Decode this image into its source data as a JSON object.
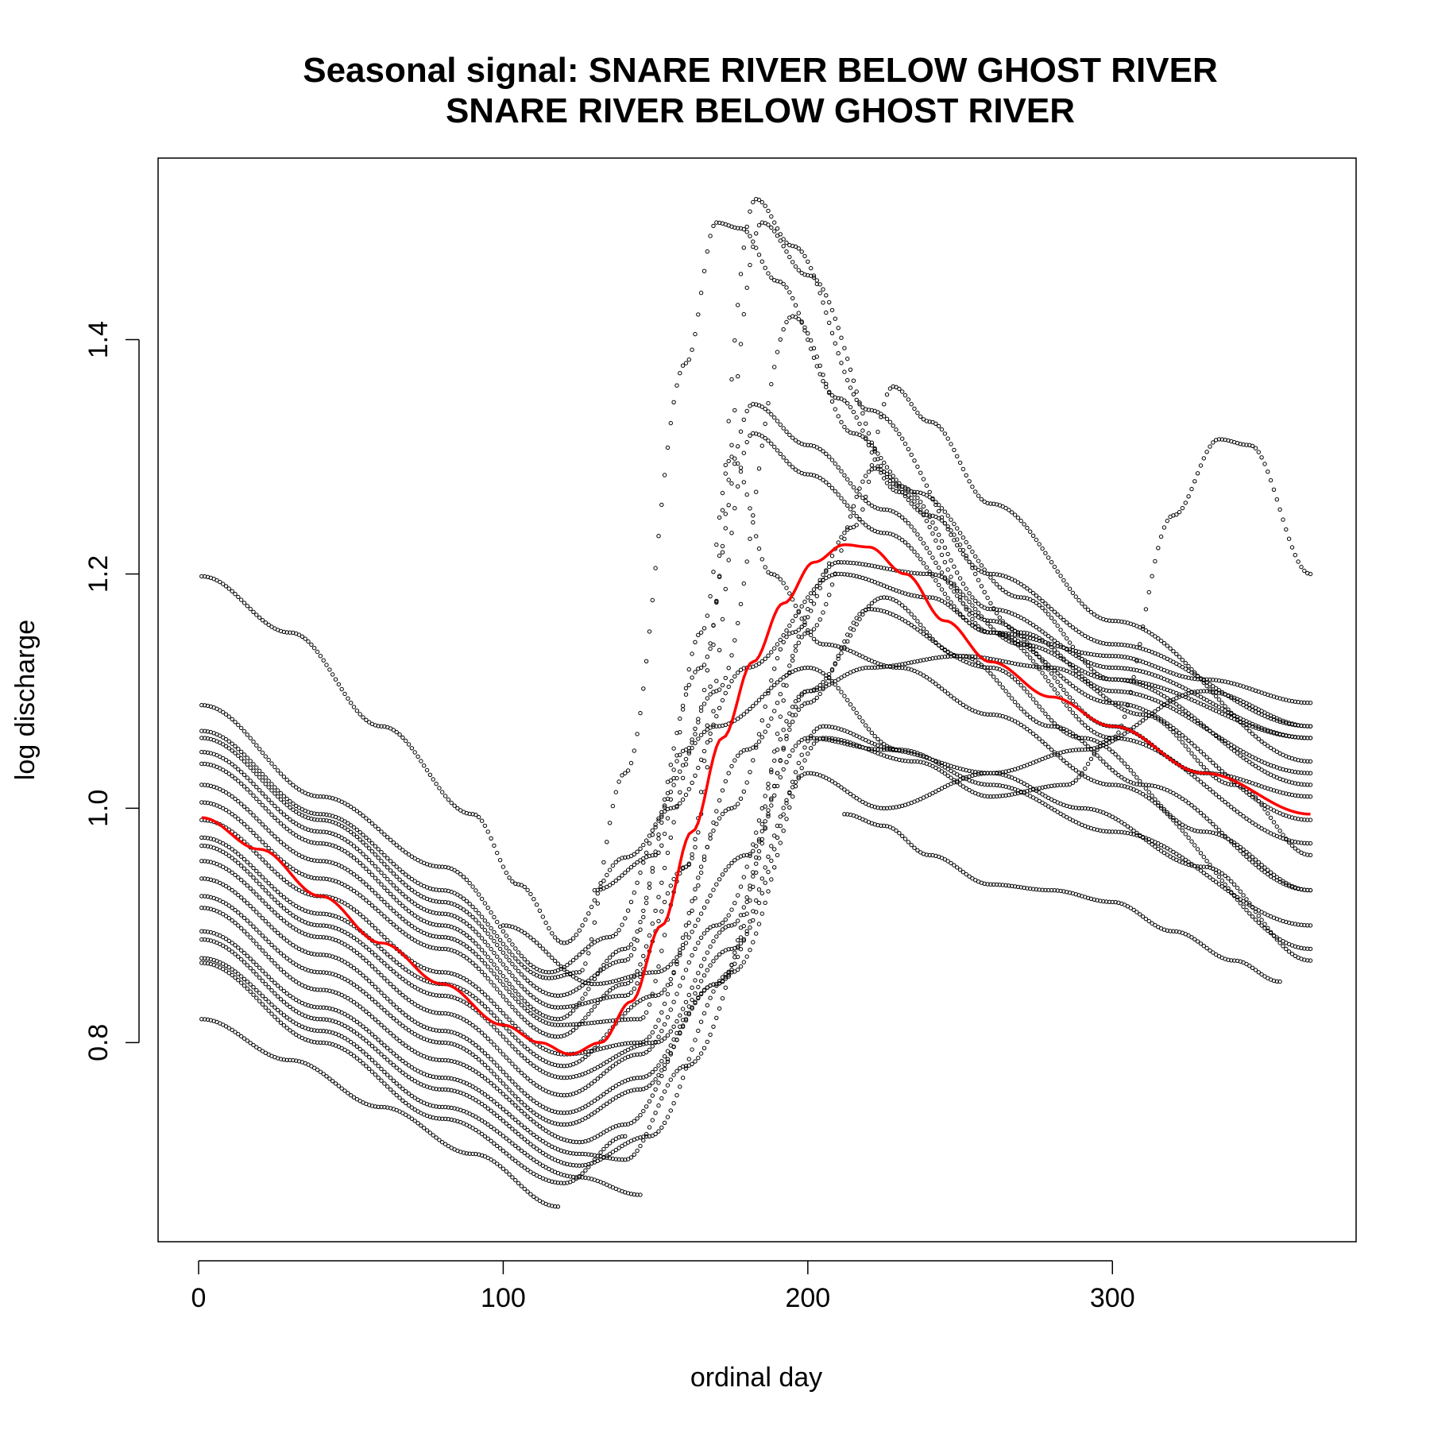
{
  "chart_data": {
    "type": "scatter",
    "title_lines": [
      "Seasonal signal: SNARE RIVER BELOW GHOST RIVER",
      "SNARE RIVER BELOW GHOST RIVER"
    ],
    "xlabel": "ordinal day",
    "ylabel": "log discharge",
    "xlim": [
      -13.3,
      380
    ],
    "ylim": [
      0.63,
      1.555
    ],
    "x_ticks": [
      0,
      100,
      200,
      300
    ],
    "y_ticks": [
      0.8,
      1.0,
      1.2,
      1.4
    ],
    "x_tick_labels": [
      "0",
      "100",
      "200",
      "300"
    ],
    "y_tick_labels": [
      "0.8",
      "1.0",
      "1.2",
      "1.4"
    ],
    "point_color": "#000000",
    "trend_color": "#ff0000",
    "grid": false,
    "legend": "none",
    "series": [
      {
        "points": [
          [
            1,
            1.198
          ],
          [
            30,
            1.15
          ],
          [
            60,
            1.07
          ],
          [
            90,
            0.995
          ],
          [
            105,
            0.935
          ],
          [
            120,
            0.885
          ],
          [
            140,
            0.958
          ],
          [
            170,
            1.07
          ],
          [
            200,
            1.12
          ],
          [
            230,
            1.05
          ]
        ]
      },
      {
        "points": [
          [
            1,
            1.088
          ],
          [
            40,
            1.01
          ],
          [
            80,
            0.95
          ],
          [
            115,
            0.86
          ],
          [
            135,
            0.89
          ],
          [
            155,
            1.0
          ],
          [
            180,
            1.12
          ],
          [
            210,
            1.2
          ],
          [
            240,
            1.18
          ],
          [
            260,
            1.15
          ],
          [
            300,
            1.13
          ],
          [
            330,
            1.11
          ],
          [
            365,
            1.09
          ]
        ]
      },
      {
        "points": [
          [
            1,
            1.066
          ],
          [
            40,
            0.995
          ],
          [
            80,
            0.93
          ],
          [
            115,
            0.855
          ],
          [
            125,
            0.86
          ],
          [
            140,
            1.03
          ],
          [
            160,
            1.38
          ],
          [
            170,
            1.5
          ],
          [
            178,
            1.495
          ],
          [
            190,
            1.45
          ],
          [
            210,
            1.35
          ],
          [
            230,
            1.27
          ],
          [
            260,
            1.15
          ],
          [
            300,
            1.09
          ],
          [
            365,
            0.99
          ]
        ]
      },
      {
        "points": [
          [
            1,
            1.06
          ],
          [
            40,
            0.99
          ],
          [
            80,
            0.92
          ],
          [
            118,
            0.84
          ],
          [
            140,
            0.87
          ],
          [
            160,
            1.05
          ],
          [
            182,
            1.345
          ],
          [
            200,
            1.31
          ],
          [
            225,
            1.255
          ],
          [
            260,
            1.16
          ],
          [
            300,
            1.07
          ],
          [
            330,
            1.03
          ],
          [
            365,
            1.01
          ]
        ]
      },
      {
        "points": [
          [
            1,
            1.048
          ],
          [
            40,
            0.98
          ],
          [
            80,
            0.91
          ],
          [
            118,
            0.83
          ],
          [
            140,
            0.84
          ],
          [
            160,
            0.95
          ],
          [
            182,
            1.32
          ],
          [
            200,
            1.285
          ],
          [
            225,
            1.235
          ],
          [
            260,
            1.15
          ],
          [
            300,
            1.06
          ],
          [
            365,
            0.97
          ]
        ]
      },
      {
        "points": [
          [
            1,
            1.038
          ],
          [
            40,
            0.97
          ],
          [
            80,
            0.9
          ],
          [
            118,
            0.82
          ],
          [
            140,
            0.88
          ],
          [
            165,
            1.12
          ],
          [
            185,
            1.5
          ],
          [
            200,
            1.455
          ],
          [
            230,
            1.275
          ],
          [
            260,
            1.17
          ],
          [
            300,
            1.12
          ],
          [
            365,
            1.06
          ]
        ]
      },
      {
        "points": [
          [
            1,
            1.02
          ],
          [
            40,
            0.955
          ],
          [
            80,
            0.89
          ],
          [
            118,
            0.815
          ],
          [
            145,
            0.82
          ],
          [
            160,
            0.95
          ],
          [
            183,
            1.52
          ],
          [
            195,
            1.48
          ],
          [
            220,
            1.34
          ],
          [
            260,
            1.2
          ],
          [
            300,
            1.14
          ],
          [
            365,
            1.07
          ]
        ]
      },
      {
        "points": [
          [
            1,
            1.005
          ],
          [
            40,
            0.94
          ],
          [
            80,
            0.88
          ],
          [
            118,
            0.805
          ],
          [
            140,
            0.85
          ],
          [
            170,
            1.1
          ],
          [
            195,
            1.42
          ],
          [
            215,
            1.32
          ],
          [
            235,
            1.27
          ],
          [
            270,
            1.18
          ],
          [
            300,
            1.11
          ],
          [
            365,
            1.02
          ]
        ]
      },
      {
        "points": [
          [
            1,
            0.99
          ],
          [
            40,
            0.925
          ],
          [
            80,
            0.86
          ],
          [
            120,
            0.79
          ],
          [
            145,
            0.8
          ],
          [
            175,
            1.0
          ],
          [
            195,
            1.15
          ],
          [
            215,
            1.24
          ],
          [
            228,
            1.36
          ],
          [
            240,
            1.33
          ],
          [
            260,
            1.26
          ],
          [
            300,
            1.16
          ],
          [
            365,
            1.04
          ]
        ]
      },
      {
        "points": [
          [
            1,
            0.975
          ],
          [
            40,
            0.91
          ],
          [
            80,
            0.85
          ],
          [
            120,
            0.78
          ],
          [
            150,
            0.84
          ],
          [
            180,
            1.05
          ],
          [
            210,
            1.21
          ],
          [
            240,
            1.2
          ],
          [
            270,
            1.14
          ],
          [
            300,
            1.11
          ],
          [
            365,
            1.06
          ]
        ]
      },
      {
        "points": [
          [
            1,
            0.968
          ],
          [
            40,
            0.9
          ],
          [
            80,
            0.84
          ],
          [
            120,
            0.77
          ],
          [
            150,
            0.8
          ],
          [
            175,
            0.9
          ],
          [
            200,
            1.15
          ],
          [
            222,
            1.29
          ],
          [
            240,
            1.25
          ],
          [
            270,
            1.15
          ],
          [
            300,
            1.1
          ],
          [
            365,
            1.03
          ]
        ]
      },
      {
        "points": [
          [
            1,
            0.955
          ],
          [
            40,
            0.89
          ],
          [
            80,
            0.825
          ],
          [
            120,
            0.755
          ],
          [
            145,
            0.79
          ],
          [
            170,
            0.9
          ],
          [
            200,
            1.1
          ],
          [
            225,
            1.18
          ],
          [
            250,
            1.13
          ],
          [
            280,
            1.07
          ],
          [
            310,
            1.02
          ],
          [
            365,
            0.93
          ]
        ]
      },
      {
        "points": [
          [
            1,
            0.94
          ],
          [
            40,
            0.875
          ],
          [
            80,
            0.81
          ],
          [
            120,
            0.74
          ],
          [
            145,
            0.77
          ],
          [
            175,
            0.88
          ],
          [
            205,
            1.07
          ],
          [
            230,
            1.05
          ],
          [
            260,
            1.02
          ],
          [
            300,
            0.98
          ],
          [
            365,
            0.9
          ]
        ]
      },
      {
        "points": [
          [
            1,
            0.925
          ],
          [
            40,
            0.86
          ],
          [
            80,
            0.8
          ],
          [
            120,
            0.73
          ],
          [
            145,
            0.76
          ],
          [
            170,
            0.85
          ],
          [
            200,
            1.09
          ],
          [
            220,
            1.17
          ],
          [
            260,
            1.12
          ],
          [
            290,
            1.06
          ],
          [
            330,
            0.98
          ],
          [
            365,
            0.93
          ]
        ]
      },
      {
        "points": [
          [
            1,
            0.915
          ],
          [
            40,
            0.845
          ],
          [
            80,
            0.785
          ],
          [
            125,
            0.715
          ],
          [
            140,
            0.73
          ],
          [
            170,
            0.85
          ],
          [
            200,
            1.03
          ],
          [
            225,
            1.0
          ],
          [
            260,
            1.03
          ],
          [
            290,
            1.05
          ],
          [
            330,
            1.1
          ],
          [
            365,
            1.07
          ]
        ]
      },
      {
        "points": [
          [
            1,
            0.895
          ],
          [
            40,
            0.83
          ],
          [
            80,
            0.77
          ],
          [
            125,
            0.705
          ],
          [
            140,
            0.7
          ],
          [
            160,
            0.78
          ],
          [
            200,
            1.06
          ],
          [
            225,
            1.05
          ],
          [
            260,
            1.03
          ],
          [
            290,
            1.0
          ],
          [
            330,
            0.95
          ],
          [
            365,
            0.87
          ]
        ]
      },
      {
        "points": [
          [
            1,
            0.888
          ],
          [
            40,
            0.82
          ],
          [
            80,
            0.76
          ],
          [
            125,
            0.695
          ],
          [
            148,
            0.72
          ],
          [
            175,
            0.86
          ],
          [
            205,
            1.06
          ],
          [
            235,
            1.04
          ],
          [
            260,
            1.01
          ],
          [
            285,
            1.02
          ],
          [
            300,
            1.06
          ],
          [
            320,
            1.25
          ],
          [
            335,
            1.315
          ],
          [
            345,
            1.31
          ],
          [
            365,
            1.2
          ]
        ]
      },
      {
        "points": [
          [
            1,
            0.872
          ],
          [
            40,
            0.81
          ],
          [
            80,
            0.745
          ],
          [
            125,
            0.685
          ],
          [
            145,
            0.67
          ]
        ]
      },
      {
        "points": [
          [
            1,
            0.868
          ],
          [
            40,
            0.8
          ],
          [
            80,
            0.735
          ],
          [
            120,
            0.68
          ],
          [
            140,
            0.72
          ]
        ]
      },
      {
        "points": [
          [
            1,
            0.82
          ],
          [
            30,
            0.785
          ],
          [
            60,
            0.745
          ],
          [
            90,
            0.705
          ],
          [
            118,
            0.66
          ]
        ]
      },
      {
        "points": [
          [
            212,
            0.995
          ],
          [
            225,
            0.985
          ],
          [
            240,
            0.96
          ],
          [
            260,
            0.935
          ],
          [
            280,
            0.93
          ],
          [
            300,
            0.92
          ],
          [
            320,
            0.895
          ],
          [
            340,
            0.87
          ],
          [
            355,
            0.852
          ]
        ]
      },
      {
        "points": [
          [
            100,
            0.9
          ],
          [
            130,
            0.85
          ],
          [
            150,
            0.86
          ],
          [
            180,
            0.96
          ],
          [
            200,
            1.1
          ],
          [
            220,
            1.12
          ],
          [
            250,
            1.13
          ],
          [
            280,
            1.12
          ],
          [
            310,
            1.08
          ],
          [
            340,
            1.02
          ],
          [
            365,
            0.96
          ]
        ]
      },
      {
        "points": [
          [
            130,
            0.93
          ],
          [
            150,
            0.96
          ],
          [
            165,
            1.15
          ],
          [
            175,
            1.3
          ],
          [
            188,
            1.2
          ],
          [
            205,
            1.14
          ],
          [
            230,
            1.12
          ],
          [
            260,
            1.08
          ],
          [
            300,
            1.02
          ],
          [
            365,
            0.88
          ]
        ]
      }
    ],
    "trend": {
      "name": "",
      "points": [
        [
          1,
          0.992
        ],
        [
          20,
          0.965
        ],
        [
          40,
          0.925
        ],
        [
          60,
          0.885
        ],
        [
          80,
          0.85
        ],
        [
          100,
          0.815
        ],
        [
          112,
          0.8
        ],
        [
          122,
          0.79
        ],
        [
          132,
          0.8
        ],
        [
          142,
          0.835
        ],
        [
          152,
          0.9
        ],
        [
          162,
          0.98
        ],
        [
          172,
          1.06
        ],
        [
          182,
          1.125
        ],
        [
          192,
          1.175
        ],
        [
          202,
          1.21
        ],
        [
          212,
          1.225
        ],
        [
          220,
          1.223
        ],
        [
          232,
          1.2
        ],
        [
          245,
          1.16
        ],
        [
          260,
          1.125
        ],
        [
          280,
          1.095
        ],
        [
          300,
          1.07
        ],
        [
          330,
          1.03
        ],
        [
          365,
          0.995
        ]
      ]
    }
  }
}
